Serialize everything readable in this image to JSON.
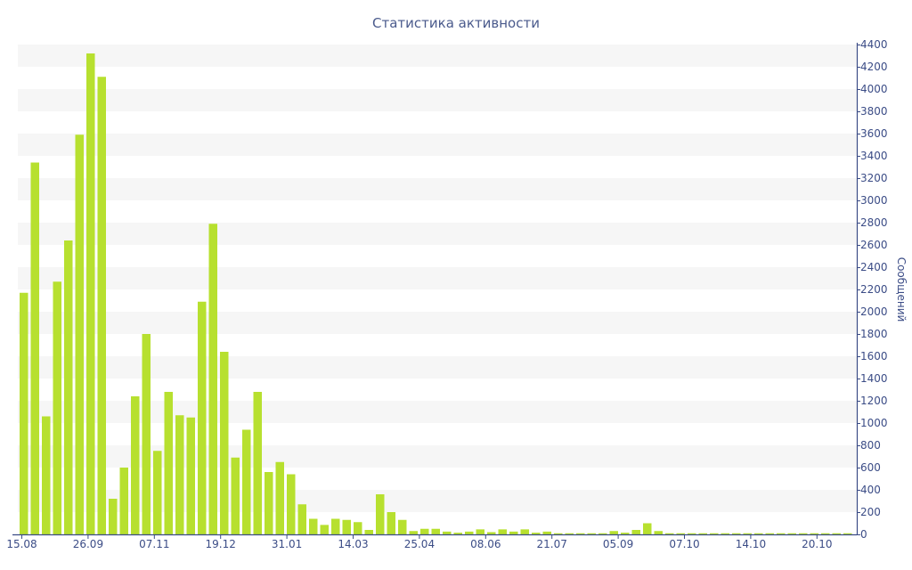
{
  "chart_data": {
    "type": "bar",
    "title": "Статистика активности",
    "xlabel": "",
    "ylabel": "Сообщений",
    "ylim": [
      0,
      4400
    ],
    "y_axis_side": "right",
    "y_ticks": [
      0,
      200,
      400,
      600,
      800,
      1000,
      1200,
      1400,
      1600,
      1800,
      2000,
      2200,
      2400,
      2600,
      2800,
      3000,
      3200,
      3400,
      3600,
      3800,
      4000,
      4200,
      4400
    ],
    "x_tick_labels": [
      "15.08",
      "26.09",
      "07.11",
      "19.12",
      "31.01",
      "14.03",
      "25.04",
      "08.06",
      "21.07",
      "05.09",
      "07.10",
      "14.10",
      "20.10"
    ],
    "grid": "alternating horizontal bands",
    "bar_color": "#b7e02f",
    "band_color": "#f6f6f6",
    "axis_text_color": "#3b4c86",
    "values": [
      2170,
      3340,
      1060,
      2270,
      2640,
      3590,
      4320,
      4110,
      320,
      600,
      1240,
      1800,
      750,
      1280,
      1070,
      1050,
      2090,
      2790,
      1640,
      690,
      940,
      1280,
      560,
      650,
      540,
      270,
      140,
      85,
      140,
      130,
      110,
      40,
      360,
      200,
      130,
      30,
      50,
      50,
      25,
      15,
      25,
      45,
      20,
      45,
      25,
      45,
      15,
      25,
      10,
      10,
      10,
      10,
      10,
      30,
      15,
      40,
      100,
      30,
      10,
      10,
      10,
      10,
      10,
      10,
      10,
      10,
      10,
      10,
      10,
      10,
      10,
      10,
      10,
      10,
      10
    ]
  }
}
